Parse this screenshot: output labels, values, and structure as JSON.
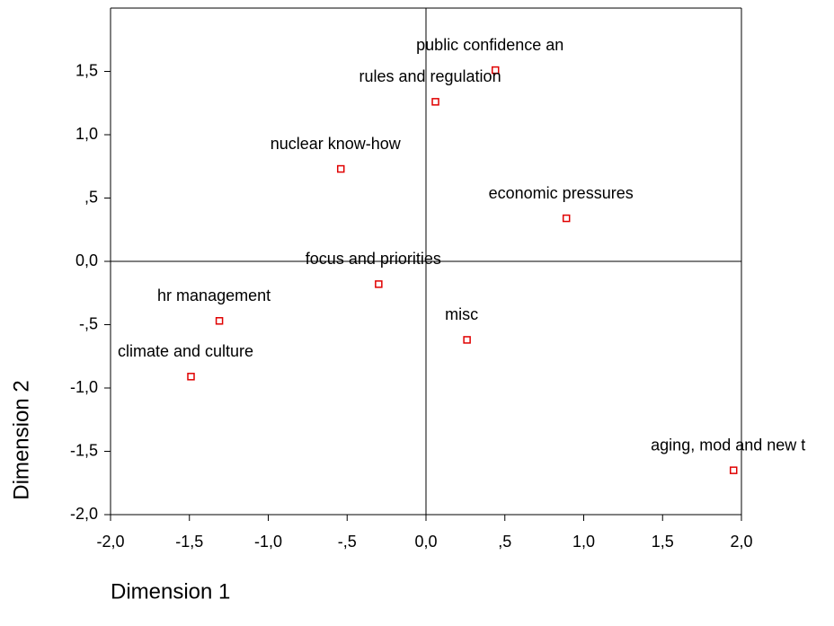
{
  "chart_data": {
    "type": "scatter",
    "x_label": "Dimension 1",
    "y_label": "Dimension 2",
    "color": "#e00000",
    "point_labels": [
      "public confidence an",
      "rules and regulation",
      "nuclear know-how",
      "economic pressures",
      "focus and priorities",
      "hr management",
      "misc",
      "climate and culture",
      "aging, mod and new t"
    ],
    "x": [
      0.44,
      0.06,
      -0.54,
      0.89,
      -0.3,
      -1.31,
      0.26,
      -1.49,
      1.95
    ],
    "values": [
      1.51,
      1.26,
      0.73,
      0.34,
      -0.18,
      -0.47,
      -0.62,
      -0.91,
      -1.65
    ],
    "xlim": [
      -2,
      2
    ],
    "ylim": [
      -2,
      2
    ],
    "xticks": [
      {
        "value": -2,
        "label": "-2,0"
      },
      {
        "value": -1.5,
        "label": "-1,5"
      },
      {
        "value": -1,
        "label": "-1,0"
      },
      {
        "value": -0.5,
        "label": "-,5"
      },
      {
        "value": 0,
        "label": "0,0"
      },
      {
        "value": 0.5,
        "label": ",5"
      },
      {
        "value": 1,
        "label": "1,0"
      },
      {
        "value": 1.5,
        "label": "1,5"
      },
      {
        "value": 2,
        "label": "2,0"
      }
    ],
    "yticks": [
      {
        "value": -2,
        "label": "-2,0"
      },
      {
        "value": -1.5,
        "label": "-1,5"
      },
      {
        "value": -1,
        "label": "-1,0"
      },
      {
        "value": -0.5,
        "label": "-,5"
      },
      {
        "value": 0,
        "label": "0,0"
      },
      {
        "value": 0.5,
        "label": ",5"
      },
      {
        "value": 1,
        "label": "1,0"
      },
      {
        "value": 1.5,
        "label": "1,5"
      }
    ]
  }
}
